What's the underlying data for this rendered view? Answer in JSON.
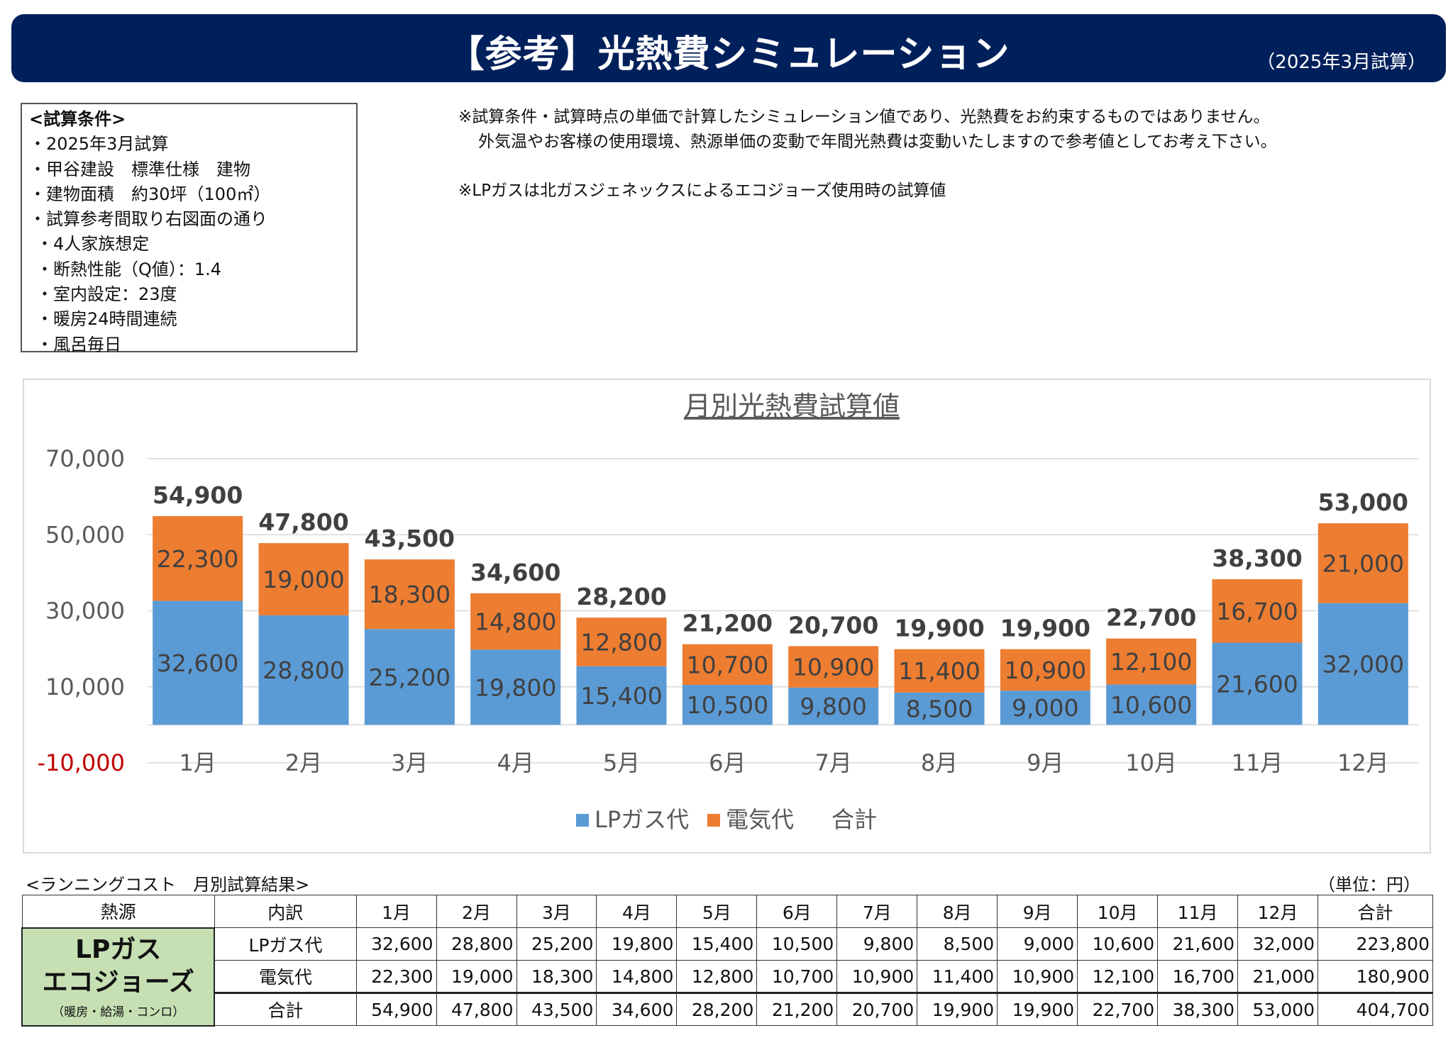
{
  "header": {
    "title": "【参考】光熱費シミュレーション",
    "date_note": "（2025年3月試算）"
  },
  "conditions": {
    "heading": "<試算条件>",
    "items": [
      "・2025年3月試算",
      "・甲谷建設　標準仕様　建物",
      "・建物面積　約30坪（100㎡）",
      "・試算参考間取り右図面の通り"
    ],
    "sub_items": [
      "・4人家族想定",
      "・断熱性能（Q値）：1.4",
      "・室内設定：23度",
      "・暖房24時間連続",
      "・風呂毎日"
    ]
  },
  "notes": {
    "line1": "※試算条件・試算時点の単価で計算したシミュレーション値であり、光熱費をお約束するものではありません。",
    "line2": "外気温やお客様の使用環境、熱源単価の変動で年間光熱費は変動いたしますので参考値としてお考え下さい。",
    "line3": "※LPガスは北ガスジェネックスによるエコジョーズ使用時の試算値"
  },
  "chart_data": {
    "type": "bar",
    "stacked": true,
    "title": "月別光熱費試算値",
    "categories": [
      "1月",
      "2月",
      "3月",
      "4月",
      "5月",
      "6月",
      "7月",
      "8月",
      "9月",
      "10月",
      "11月",
      "12月"
    ],
    "series": [
      {
        "name": "LPガス代",
        "color": "#5b9bd5",
        "values": [
          32600,
          28800,
          25200,
          19800,
          15400,
          10500,
          9800,
          8500,
          9000,
          10600,
          21600,
          32000
        ]
      },
      {
        "name": "電気代",
        "color": "#ed7d31",
        "values": [
          22300,
          19000,
          18300,
          14800,
          12800,
          10700,
          10900,
          11400,
          10900,
          12100,
          16700,
          21000
        ]
      }
    ],
    "totals": {
      "name": "合計",
      "values": [
        54900,
        47800,
        43500,
        34600,
        28200,
        21200,
        20700,
        19900,
        19900,
        22700,
        38300,
        53000
      ]
    },
    "y_ticks": [
      70000,
      50000,
      30000,
      10000,
      -10000
    ],
    "y_tick_labels": [
      "70,000",
      "50,000",
      "30,000",
      "10,000",
      "-10,000"
    ],
    "ylim": [
      -10000,
      70000
    ],
    "grid": true,
    "legend_position": "bottom",
    "negative_color": "#c00000"
  },
  "table": {
    "caption": "<ランニングコスト　月別試算結果>",
    "unit": "（単位：円）",
    "headers": [
      "熱源",
      "内訳",
      "1月",
      "2月",
      "3月",
      "4月",
      "5月",
      "6月",
      "7月",
      "8月",
      "9月",
      "10月",
      "11月",
      "12月",
      "合計"
    ],
    "source": {
      "line1": "LPガス",
      "line2": "エコジョーズ",
      "line3": "（暖房・給湯・コンロ）"
    },
    "rows": [
      {
        "label": "LPガス代",
        "values": [
          "32,600",
          "28,800",
          "25,200",
          "19,800",
          "15,400",
          "10,500",
          "9,800",
          "8,500",
          "9,000",
          "10,600",
          "21,600",
          "32,000",
          "223,800"
        ]
      },
      {
        "label": "電気代",
        "values": [
          "22,300",
          "19,000",
          "18,300",
          "14,800",
          "12,800",
          "10,700",
          "10,900",
          "11,400",
          "10,900",
          "12,100",
          "16,700",
          "21,000",
          "180,900"
        ]
      },
      {
        "label": "合計",
        "values": [
          "54,900",
          "47,800",
          "43,500",
          "34,600",
          "28,200",
          "21,200",
          "20,700",
          "19,900",
          "19,900",
          "22,700",
          "38,300",
          "53,000",
          "404,700"
        ]
      }
    ]
  }
}
